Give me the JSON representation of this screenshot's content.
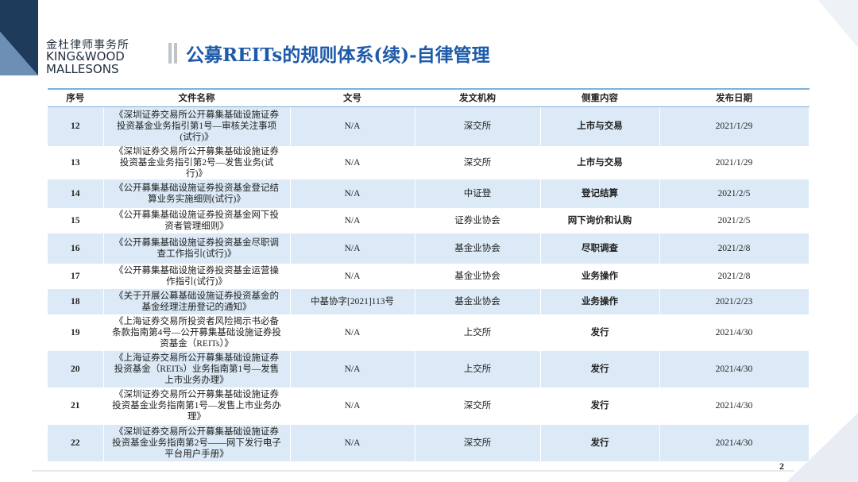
{
  "logo": {
    "chinese": "金杜律师事务所",
    "line1": "KING&WOOD",
    "line2": "MALLESONS"
  },
  "title": "公募REITs的规则体系(续)-自律管理",
  "table": {
    "header": [
      "序号",
      "文件名称",
      "文号",
      "发文机构",
      "侧重内容",
      "发布日期"
    ],
    "rows": [
      [
        "12",
        "《深圳证券交易所公开募集基础设施证券投资基金业务指引第1号—审核关注事项(试行)》",
        "N/A",
        "深交所",
        "上市与交易",
        "2021/1/29"
      ],
      [
        "13",
        "《深圳证券交易所公开募集基础设施证券投资基金业务指引第2号—发售业务(试行)》",
        "N/A",
        "深交所",
        "上市与交易",
        "2021/1/29"
      ],
      [
        "14",
        "《公开募集基础设施证券投资基金登记结算业务实施细则(试行)》",
        "N/A",
        "中证登",
        "登记结算",
        "2021/2/5"
      ],
      [
        "15",
        "《公开募集基础设施证券投资基金网下投资者管理细则》",
        "N/A",
        "证券业协会",
        "网下询价和认购",
        "2021/2/5"
      ],
      [
        "16",
        "《公开募集基础设施证券投资基金尽职调查工作指引(试行)》",
        "N/A",
        "基金业协会",
        "尽职调查",
        "2021/2/8"
      ],
      [
        "17",
        "《公开募集基础设施证券投资基金运营操作指引(试行)》",
        "N/A",
        "基金业协会",
        "业务操作",
        "2021/2/8"
      ],
      [
        "18",
        "《关于开展公募基础设施证券投资基金的基金经理注册登记的通知》",
        "中基协字[2021]113号",
        "基金业协会",
        "业务操作",
        "2021/2/23"
      ],
      [
        "19",
        "《上海证券交易所投资者风险揭示书必备条款指南第4号—公开募集基础设施证券投资基金（REITs）》",
        "N/A",
        "上交所",
        "发行",
        "2021/4/30"
      ],
      [
        "20",
        "《上海证券交易所公开募集基础设施证券投资基金（REITs）业务指南第1号—发售上市业务办理》",
        "N/A",
        "上交所",
        "发行",
        "2021/4/30"
      ],
      [
        "21",
        "《深圳证券交易所公开募集基础设施证券投资基金业务指南第1号—发售上市业务办理》",
        "N/A",
        "深交所",
        "发行",
        "2021/4/30"
      ],
      [
        "22",
        "《深圳证券交易所公开募集基础设施证券投资基金业务指南第2号——网下发行电子平台用户手册》",
        "N/A",
        "深交所",
        "发行",
        "2021/4/30"
      ]
    ]
  },
  "page_number": "2"
}
